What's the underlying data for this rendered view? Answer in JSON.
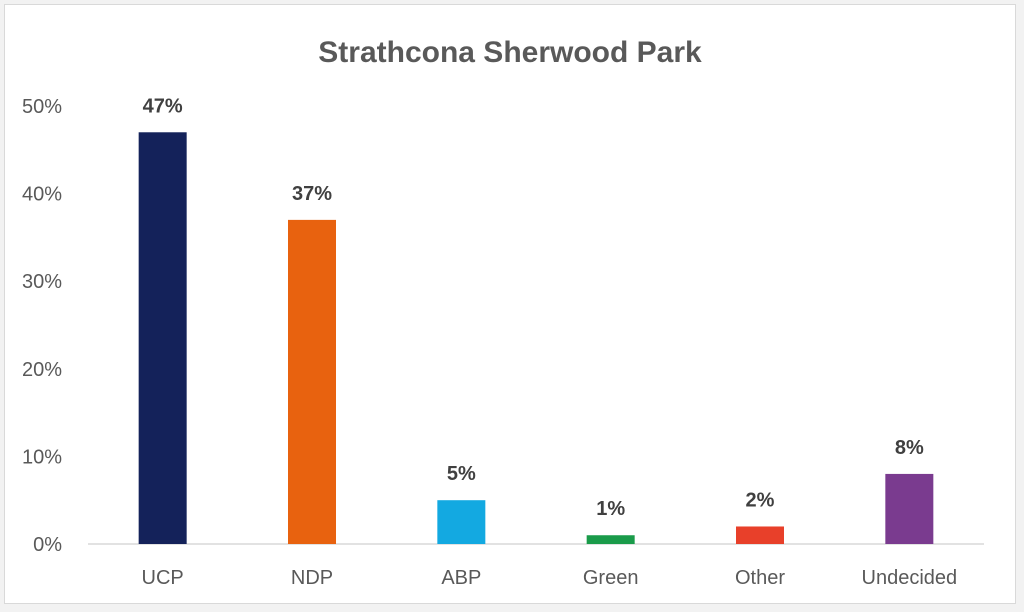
{
  "chart_data": {
    "type": "bar",
    "title": "Strathcona Sherwood Park",
    "categories": [
      "UCP",
      "NDP",
      "ABP",
      "Green",
      "Other",
      "Undecided"
    ],
    "values": [
      47,
      37,
      5,
      1,
      2,
      8
    ],
    "data_labels": [
      "47%",
      "37%",
      "5%",
      "1%",
      "2%",
      "8%"
    ],
    "colors": [
      "#14225a",
      "#e8620f",
      "#13a9e1",
      "#1a9b4a",
      "#e8402a",
      "#7a3b8f"
    ],
    "yticks": [
      "0%",
      "10%",
      "20%",
      "30%",
      "40%",
      "50%"
    ],
    "ylim": [
      0,
      50
    ],
    "grid": false,
    "xlabel": "",
    "ylabel": ""
  }
}
